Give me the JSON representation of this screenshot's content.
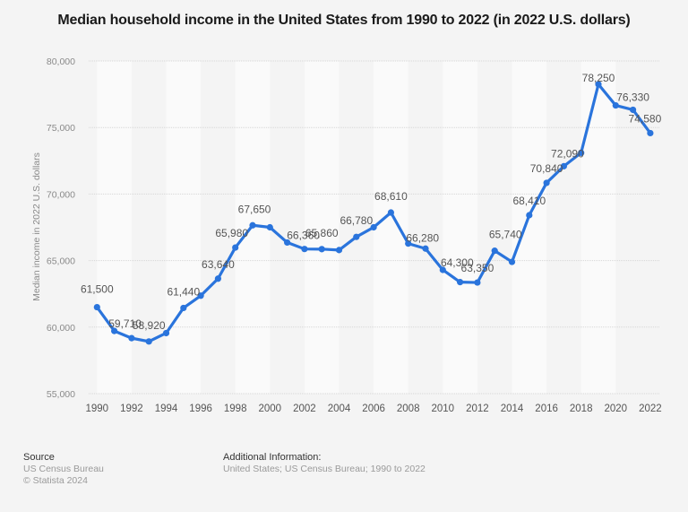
{
  "chart_data": {
    "type": "line",
    "title": "Median household income in the United States from 1990 to 2022 (in 2022 U.S. dollars)",
    "xlabel": "",
    "ylabel": "Median income in 2022 U.S. dollars",
    "ylim": [
      55000,
      80000
    ],
    "yticks": [
      55000,
      60000,
      65000,
      70000,
      75000,
      80000
    ],
    "ytick_labels": [
      "55,000",
      "60,000",
      "65,000",
      "70,000",
      "75,000",
      "80,000"
    ],
    "xticks": [
      1990,
      1992,
      1994,
      1996,
      1998,
      2000,
      2002,
      2004,
      2006,
      2008,
      2010,
      2012,
      2014,
      2016,
      2018,
      2020,
      2022
    ],
    "xtick_labels": [
      "1990",
      "1992",
      "1994",
      "1996",
      "1998",
      "2000",
      "2002",
      "2004",
      "2006",
      "2008",
      "2010",
      "2012",
      "2014",
      "2016",
      "2018",
      "2020",
      "2022"
    ],
    "grid": true,
    "legend": "none",
    "line_color": "#2a74dc",
    "series": [
      {
        "name": "Median household income",
        "x": [
          1990,
          1991,
          1992,
          1993,
          1994,
          1995,
          1996,
          1997,
          1998,
          1999,
          2000,
          2001,
          2002,
          2003,
          2004,
          2005,
          2006,
          2007,
          2008,
          2009,
          2010,
          2011,
          2012,
          2013,
          2014,
          2015,
          2016,
          2017,
          2018,
          2019,
          2020,
          2021,
          2022
        ],
        "values": [
          61500,
          59710,
          59170,
          58920,
          59550,
          61440,
          62360,
          63640,
          65980,
          67650,
          67500,
          66360,
          65870,
          65860,
          65790,
          66780,
          67500,
          68610,
          66280,
          65900,
          64300,
          63380,
          63350,
          65740,
          64900,
          68410,
          70840,
          72090,
          73100,
          78250,
          76660,
          76330,
          74580
        ]
      }
    ],
    "data_labels": [
      {
        "x": 1990,
        "text": "61,500"
      },
      {
        "x": 1991,
        "text": "59,710"
      },
      {
        "x": 1993,
        "text": "58,920"
      },
      {
        "x": 1995,
        "text": "61,440"
      },
      {
        "x": 1997,
        "text": "63,640"
      },
      {
        "x": 1998,
        "text": "65,980"
      },
      {
        "x": 1999,
        "text": "67,650"
      },
      {
        "x": 2001,
        "text": "66,360"
      },
      {
        "x": 2003,
        "text": "65,860"
      },
      {
        "x": 2005,
        "text": "66,780"
      },
      {
        "x": 2007,
        "text": "68,610"
      },
      {
        "x": 2008,
        "text": "66,280"
      },
      {
        "x": 2010,
        "text": "64,300"
      },
      {
        "x": 2012,
        "text": "63,350"
      },
      {
        "x": 2013,
        "text": "65,740"
      },
      {
        "x": 2015,
        "text": "68,410"
      },
      {
        "x": 2016,
        "text": "70,840"
      },
      {
        "x": 2017,
        "text": "72,090"
      },
      {
        "x": 2019,
        "text": "78,250"
      },
      {
        "x": 2021,
        "text": "76,330"
      },
      {
        "x": 2022,
        "text": "74,580"
      }
    ]
  },
  "footer": {
    "source_heading": "Source",
    "source_lines": [
      "US Census Bureau",
      "© Statista 2024"
    ],
    "info_heading": "Additional Information:",
    "info_text": "United States; US Census Bureau; 1990 to 2022"
  }
}
